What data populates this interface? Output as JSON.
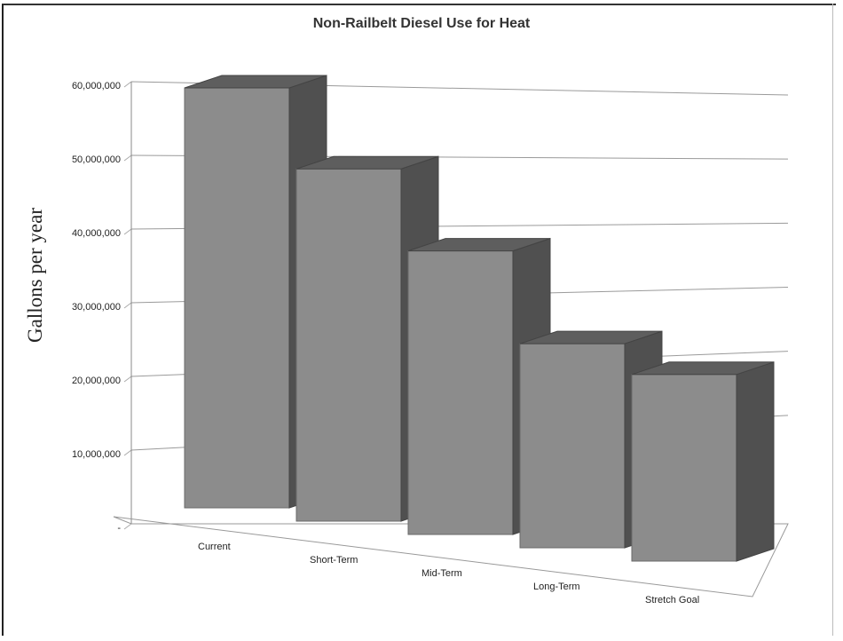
{
  "chart_data": {
    "type": "bar",
    "title": "Non-Railbelt Diesel Use for Heat",
    "ylabel": "Gallons per year",
    "xlabel": "",
    "categories": [
      "Current",
      "Short-Term",
      "Mid-Term",
      "Long-Term",
      "Stretch Goal"
    ],
    "values": [
      59000000,
      50500000,
      41500000,
      30500000,
      28500000
    ],
    "ylim": [
      0,
      60000000
    ],
    "y_ticks": [
      "-",
      "10,000,000",
      "20,000,000",
      "30,000,000",
      "40,000,000",
      "50,000,000",
      "60,000,000"
    ],
    "grid": true,
    "legend": "none",
    "bar_color": "#8c8c8c",
    "bar_side_color": "#505050",
    "bar_top_color": "#5e5e5e"
  }
}
